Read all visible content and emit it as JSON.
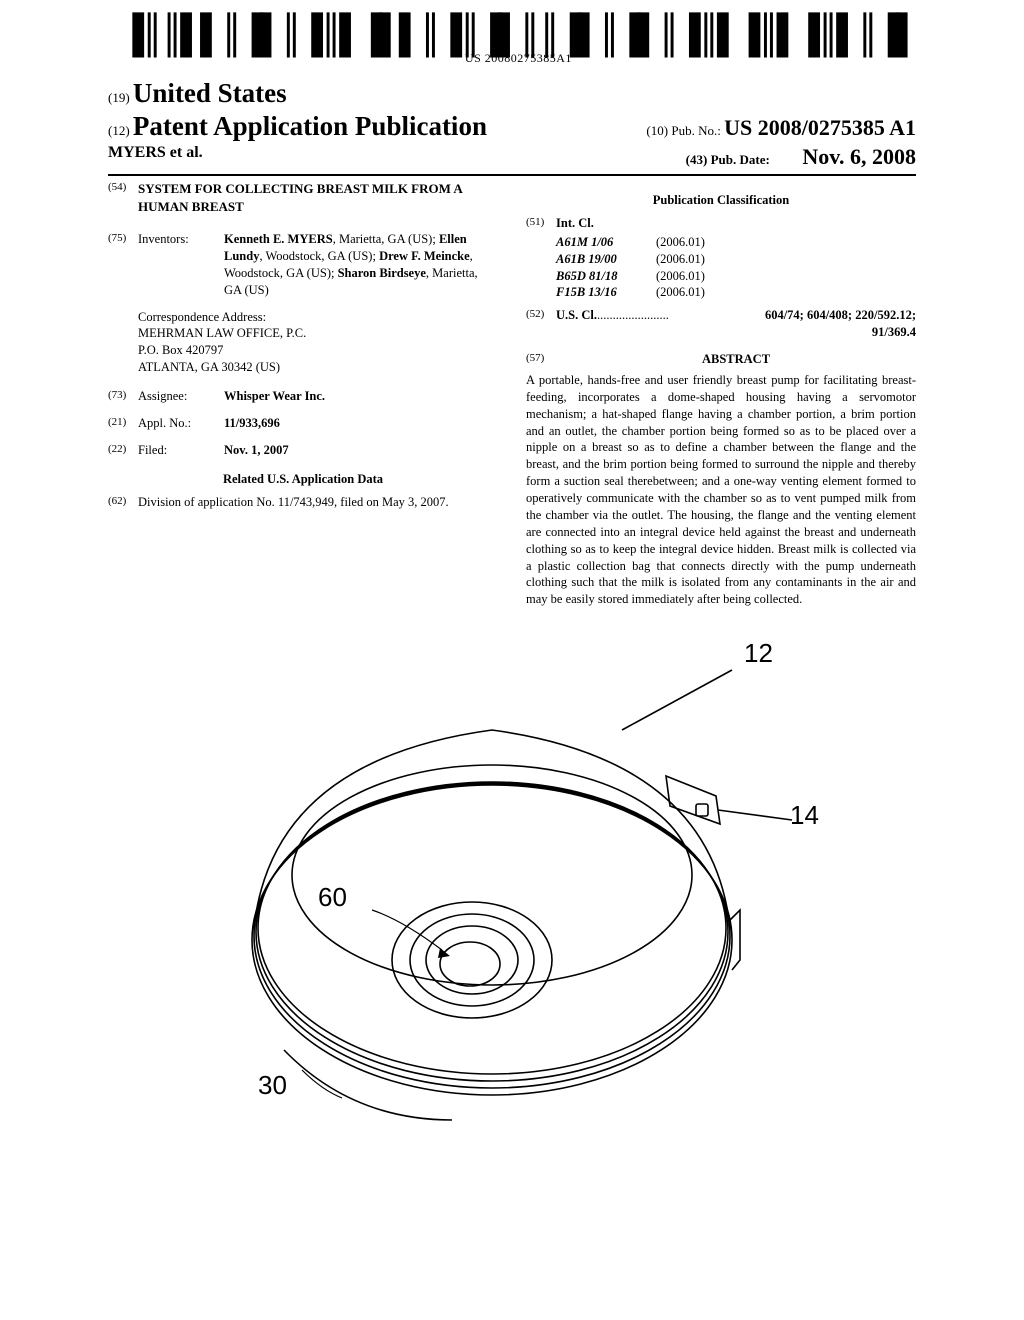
{
  "barcode_text": "US 20080275385A1",
  "header": {
    "num19": "(19)",
    "country": "United States",
    "num12": "(12)",
    "pub_title": "Patent Application Publication",
    "authors": "MYERS et al.",
    "num10": "(10)",
    "pubno_label": "Pub. No.:",
    "pubno": "US 2008/0275385 A1",
    "num43": "(43)",
    "pubdate_label": "Pub. Date:",
    "pubdate": "Nov. 6, 2008"
  },
  "left": {
    "num54": "(54)",
    "title": "SYSTEM FOR COLLECTING BREAST MILK FROM A HUMAN BREAST",
    "num75": "(75)",
    "inventors_label": "Inventors:",
    "inventors_html": "Kenneth E. MYERS|, Marietta, GA (US); |Ellen Lundy|, Woodstock, GA (US); |Drew F. Meincke|, Woodstock, GA (US); |Sharon Birdseye|, Marietta, GA (US)",
    "correspondence_label": "Correspondence Address:",
    "correspondence_l1": "MEHRMAN LAW OFFICE, P.C.",
    "correspondence_l2": "P.O. Box 420797",
    "correspondence_l3": "ATLANTA, GA 30342 (US)",
    "num73": "(73)",
    "assignee_label": "Assignee:",
    "assignee": "Whisper Wear Inc.",
    "num21": "(21)",
    "applno_label": "Appl. No.:",
    "applno": "11/933,696",
    "num22": "(22)",
    "filed_label": "Filed:",
    "filed": "Nov. 1, 2007",
    "related_header": "Related U.S. Application Data",
    "num62": "(62)",
    "division_text": "Division of application No. 11/743,949, filed on May 3, 2007."
  },
  "right": {
    "pubclass_header": "Publication Classification",
    "num51": "(51)",
    "intcl_label": "Int. Cl.",
    "classes": [
      {
        "code": "A61M 1/06",
        "year": "(2006.01)"
      },
      {
        "code": "A61B 19/00",
        "year": "(2006.01)"
      },
      {
        "code": "B65D 81/18",
        "year": "(2006.01)"
      },
      {
        "code": "F15B 13/16",
        "year": "(2006.01)"
      }
    ],
    "num52": "(52)",
    "uscl_label": "U.S. Cl.",
    "uscl_value": "604/74; 604/408; 220/592.12; 91/369.4",
    "num57": "(57)",
    "abstract_label": "ABSTRACT",
    "abstract_text": "A portable, hands-free and user friendly breast pump for facilitating breast-feeding, incorporates a dome-shaped housing having a servomotor mechanism; a hat-shaped flange having a chamber portion, a brim portion and an outlet, the chamber portion being formed so as to be placed over a nipple on a breast so as to define a chamber between the flange and the breast, and the brim portion being formed to surround the nipple and thereby form a suction seal therebetween; and a one-way venting element formed to operatively communicate with the chamber so as to vent pumped milk from the chamber via the outlet. The housing, the flange and the venting element are connected into an integral device held against the breast and underneath clothing so as to keep the integral device hidden. Breast milk is collected via a plastic collection bag that connects directly with the pump underneath clothing such that the milk is isolated from any contaminants in the air and may be easily stored immediately after being collected."
  },
  "figure": {
    "labels": {
      "l12": "12",
      "l14": "14",
      "l60": "60",
      "l30": "30"
    }
  },
  "style": {
    "page_bg": "#ffffff",
    "text_color": "#000000",
    "body_fontsize": 13,
    "title_fontsize": 27
  }
}
